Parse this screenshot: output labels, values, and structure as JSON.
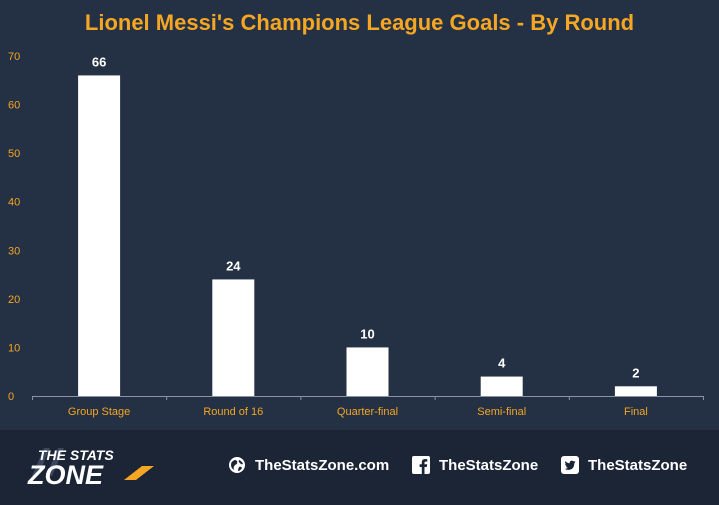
{
  "chart_data": {
    "type": "bar",
    "title": "Lionel Messi's Champions League Goals - By Round",
    "categories": [
      "Group Stage",
      "Round of 16",
      "Quarter-final",
      "Semi-final",
      "Final"
    ],
    "values": [
      66,
      24,
      10,
      4,
      2
    ],
    "ylim": [
      0,
      70
    ],
    "yticks": [
      0,
      10,
      20,
      30,
      40,
      50,
      60,
      70
    ],
    "xlabel": "",
    "ylabel": "",
    "grid": false,
    "legend": "none",
    "colors": {
      "background": "#243044",
      "bar": "#ffffff",
      "title": "#f5a623",
      "tick_label": "#f5a623",
      "category_label": "#f5a623",
      "value_label": "#ffffff",
      "axis": "#8a93a6"
    }
  },
  "footer": {
    "logo": {
      "line1": "THE STATS",
      "line2": "ZONE"
    },
    "website": {
      "icon": "globe-icon",
      "label": "TheStatsZone.com"
    },
    "facebook": {
      "icon": "facebook-icon",
      "label": "TheStatsZone"
    },
    "twitter": {
      "icon": "twitter-icon",
      "label": "TheStatsZone"
    }
  }
}
